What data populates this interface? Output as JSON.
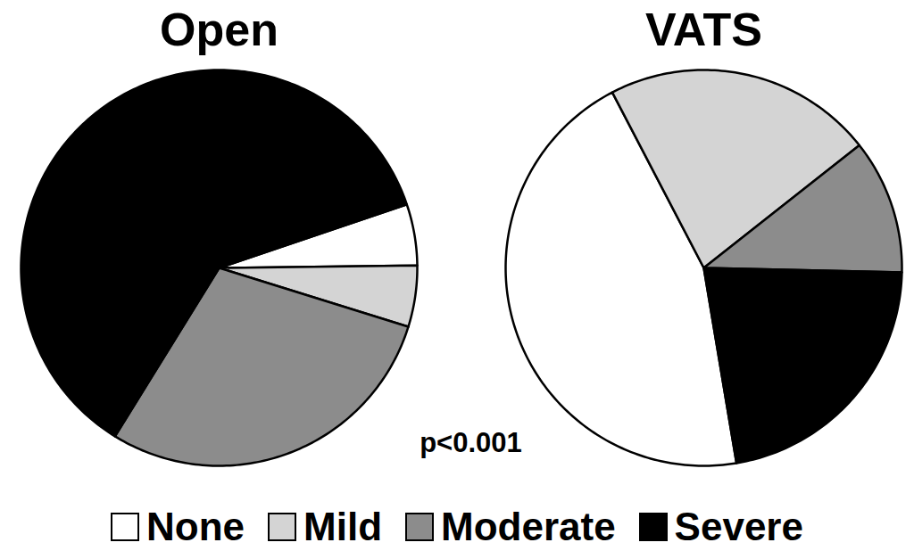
{
  "chart_data": {
    "type": "pie",
    "categories": [
      "None",
      "Mild",
      "Moderate",
      "Severe"
    ],
    "colors": [
      "#ffffff",
      "#d4d4d4",
      "#8c8c8c",
      "#000000"
    ],
    "series": [
      {
        "name": "Open",
        "values": [
          5,
          5,
          29,
          61
        ]
      },
      {
        "name": "VATS",
        "values": [
          45,
          22,
          11,
          22
        ]
      }
    ],
    "annotation": "p<0.001",
    "legend": "bottom"
  }
}
